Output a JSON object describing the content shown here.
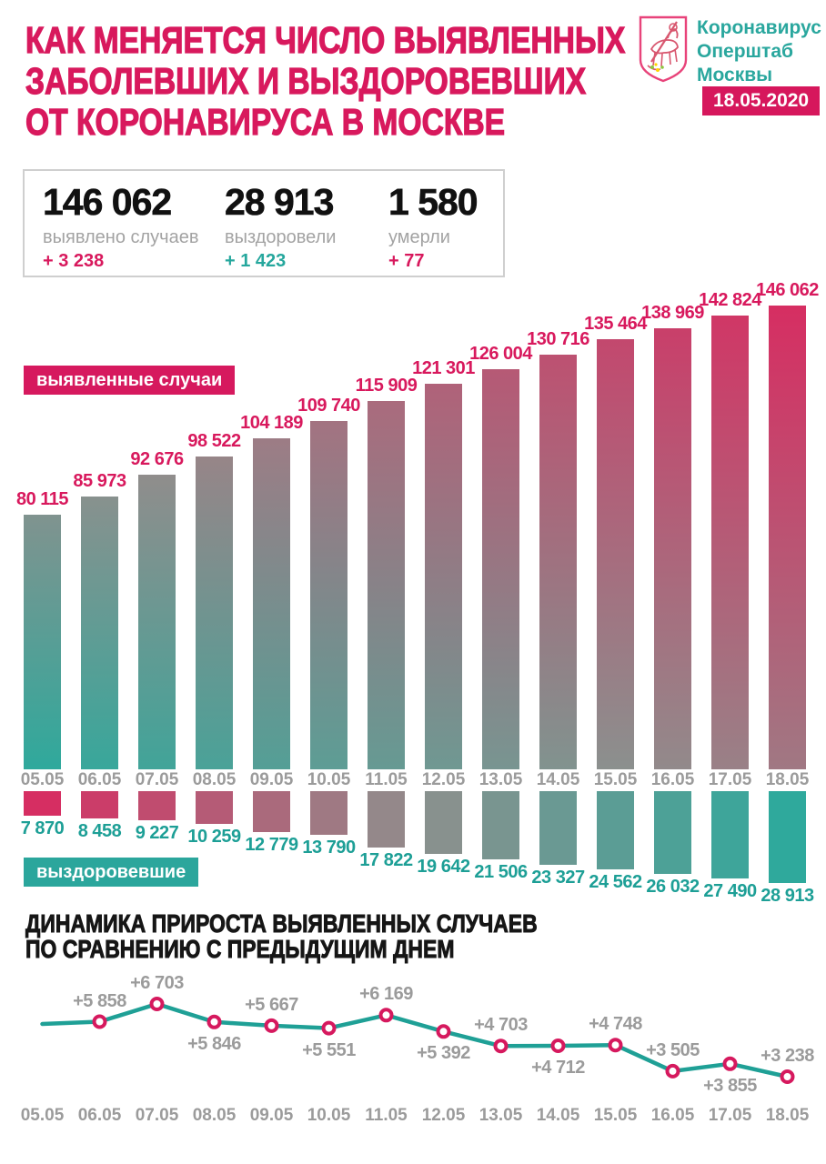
{
  "header": {
    "title_lines": [
      "КАК МЕНЯЕТСЯ ЧИСЛО ВЫЯВЛЕННЫХ",
      "ЗАБОЛЕВШИХ И ВЫЗДОРОВЕВШИХ",
      "ОТ КОРОНАВИРУСА В МОСКВЕ"
    ]
  },
  "logo": {
    "org_lines": [
      "Коронавирус",
      "Оперштаб",
      "Москвы"
    ],
    "date_badge": "18.05.2020"
  },
  "stats": {
    "items": [
      {
        "value": "146 062",
        "label": "выявлено случаев",
        "delta": "+ 3 238"
      },
      {
        "value": "28 913",
        "label": "выздоровели",
        "delta": "+ 1 423"
      },
      {
        "value": "1 580",
        "label": "умерли",
        "delta": "+ 77"
      }
    ]
  },
  "section2": {
    "title_lines": [
      "ДИНАМИКА ПРИРОСТА ВЫЯВЛЕННЫХ СЛУЧАЕВ",
      "ПО СРАВНЕНИЮ С ПРЕДЫДУЩИМ ДНЕМ"
    ]
  },
  "colors": {
    "accent_pink": "#d8195d",
    "accent_teal": "#25a79d",
    "palette_teal": "#2fa99c",
    "palette_gray": "#8f8f8d",
    "palette_pink": "#d62e62",
    "line_stroke": "#1fa096",
    "marker_ring": "#d6195e",
    "gray_text": "#9b9b9b"
  },
  "chart_data": [
    {
      "type": "bar",
      "categories": [
        "05.05",
        "06.05",
        "07.05",
        "08.05",
        "09.05",
        "10.05",
        "11.05",
        "12.05",
        "13.05",
        "14.05",
        "15.05",
        "16.05",
        "17.05",
        "18.05"
      ],
      "ylim": [
        0,
        146062
      ],
      "series": [
        {
          "name": "выявленные случаи",
          "direction": "up",
          "values": [
            80115,
            85973,
            92676,
            98522,
            104189,
            109740,
            115909,
            121301,
            126004,
            130716,
            135464,
            138969,
            142824,
            146062
          ],
          "labels": [
            "80 115",
            "85 973",
            "92 676",
            "98 522",
            "104 189",
            "109 740",
            "115 909",
            "121 301",
            "126 004",
            "130 716",
            "135 464",
            "138 969",
            "142 824",
            "146 062"
          ]
        },
        {
          "name": "выздоровевшие",
          "direction": "down",
          "values": [
            7870,
            8458,
            9227,
            10259,
            12779,
            13790,
            17822,
            19642,
            21506,
            23327,
            24562,
            26032,
            27490,
            28913
          ],
          "labels": [
            "7 870",
            "8 458",
            "9 227",
            "10 259",
            "12 779",
            "13 790",
            "17 822",
            "19 642",
            "21 506",
            "23 327",
            "24 562",
            "26 032",
            "27 490",
            "28 913"
          ]
        }
      ]
    },
    {
      "type": "line",
      "categories": [
        "05.05",
        "06.05",
        "07.05",
        "08.05",
        "09.05",
        "10.05",
        "11.05",
        "12.05",
        "13.05",
        "14.05",
        "15.05",
        "16.05",
        "17.05",
        "18.05"
      ],
      "values": [
        5750,
        5858,
        6703,
        5846,
        5667,
        5551,
        6169,
        5392,
        4703,
        4712,
        4748,
        3505,
        3855,
        3238
      ],
      "first_point_estimated": true,
      "labels": [
        "",
        "+5 858",
        "+6 703",
        "+5 846",
        "+5 667",
        "+5 551",
        "+6 169",
        "+5 392",
        "+4 703",
        "+4 712",
        "+4 748",
        "+3 505",
        "+3 855",
        "+3 238"
      ],
      "label_positions": [
        "",
        "above",
        "above",
        "below",
        "above",
        "below",
        "above",
        "below",
        "above",
        "below",
        "above",
        "above",
        "below",
        "above"
      ]
    }
  ]
}
